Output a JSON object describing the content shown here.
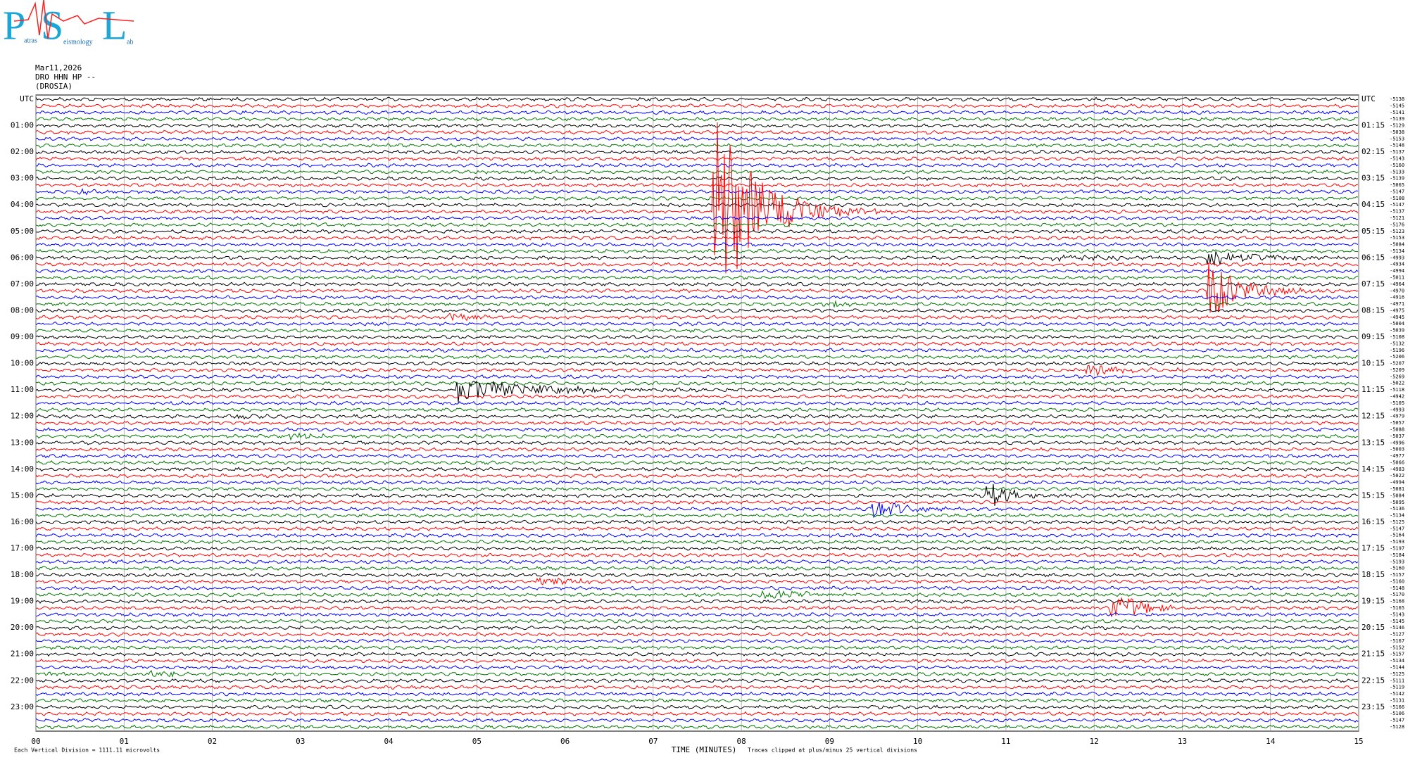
{
  "logo": {
    "big": [
      "P",
      "S",
      "L"
    ],
    "small": [
      "atras",
      "eismology",
      "ab"
    ]
  },
  "header": [
    "Mar11,2026",
    "DRO HHN HP --",
    "(DROSIA)"
  ],
  "left_labels": [
    "UTC",
    "01:00",
    "02:00",
    "03:00",
    "04:00",
    "05:00",
    "06:00",
    "07:00",
    "08:00",
    "09:00",
    "10:00",
    "11:00",
    "12:00",
    "13:00",
    "14:00",
    "15:00",
    "16:00",
    "17:00",
    "18:00",
    "19:00",
    "20:00",
    "21:00",
    "22:00",
    "23:00"
  ],
  "right_labels": [
    "UTC",
    "01:15",
    "02:15",
    "03:15",
    "04:15",
    "05:15",
    "06:15",
    "07:15",
    "08:15",
    "09:15",
    "10:15",
    "11:15",
    "12:15",
    "13:15",
    "14:15",
    "15:15",
    "16:15",
    "17:15",
    "18:15",
    "19:15",
    "20:15",
    "21:15",
    "22:15",
    "23:15"
  ],
  "offsets": [
    "-5138",
    "-5145",
    "-5141",
    "-5139",
    "-5129",
    "-5038",
    "-5153",
    "-5148",
    "-5137",
    "-5143",
    "-5160",
    "-5133",
    "-5139",
    "-5065",
    "-5147",
    "-5108",
    "-5147",
    "-5137",
    "-5121",
    "-5176",
    "-5123",
    "-5153",
    "-5084",
    "-5134",
    "-4993",
    "-4934",
    "-4994",
    "-5011",
    "-4964",
    "-4970",
    "-4916",
    "-4971",
    "-4975",
    "-4945",
    "-5004",
    "-5039",
    "-5108",
    "-5132",
    "-5196",
    "-5206",
    "-5207",
    "-5209",
    "-5269",
    "-5022",
    "-5118",
    "-4942",
    "-5105",
    "-4993",
    "-4979",
    "-5057",
    "-5088",
    "-5037",
    "-4996",
    "-5003",
    "-4977",
    "-5066",
    "-4983",
    "-5022",
    "-4994",
    "-5081",
    "-5084",
    "-5095",
    "-5136",
    "-5134",
    "-5125",
    "-5147",
    "-5164",
    "-5193",
    "-5197",
    "-5184",
    "-5193",
    "-5160",
    "-5157",
    "-5160",
    "-5148",
    "-5170",
    "-5168",
    "-5165",
    "-5143",
    "-5145",
    "-5146",
    "-5127",
    "-5167",
    "-5152",
    "-5157",
    "-5134",
    "-5144",
    "-5125",
    "-5111",
    "-5119",
    "-5142",
    "-5131",
    "-5166",
    "-5106",
    "-5147",
    "-5128"
  ],
  "x_ticks": [
    "00",
    "01",
    "02",
    "03",
    "04",
    "05",
    "06",
    "07",
    "08",
    "09",
    "10",
    "11",
    "12",
    "13",
    "14",
    "15"
  ],
  "x_title": "TIME (MINUTES)",
  "footer_left": "Each Vertical Division = 1111.11 microvolts",
  "footer_right": "Traces clipped at plus/minus 25 vertical divisions",
  "trace_colors": [
    "#000000",
    "#ff0000",
    "#0000ff",
    "#007700"
  ]
}
